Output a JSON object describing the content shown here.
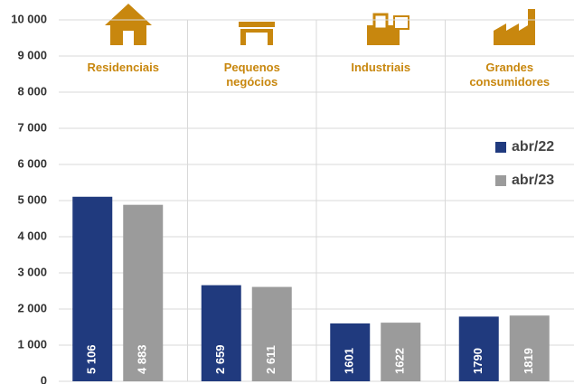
{
  "chart_data": {
    "type": "bar",
    "categories": [
      "Residenciais",
      "Pequenos\nnegócios",
      "Industriais",
      "Grandes\nconsumidores"
    ],
    "series": [
      {
        "name": "abr/22",
        "color": "#203a7e",
        "values": [
          5106,
          2659,
          1601,
          1790
        ],
        "value_labels": [
          "5 106",
          "2 659",
          "1601",
          "1790"
        ]
      },
      {
        "name": "abr/23",
        "color": "#9b9b9b",
        "values": [
          4883,
          2611,
          1622,
          1819
        ],
        "value_labels": [
          "4 883",
          "2 611",
          "1622",
          "1819"
        ]
      }
    ],
    "ylim": [
      0,
      10000
    ],
    "yticks": [
      0,
      {
        "value": 1000,
        "label": "1 000"
      },
      {
        "value": 2000,
        "label": "2 000"
      },
      {
        "value": 3000,
        "label": "3 000"
      },
      {
        "value": 4000,
        "label": "4 000"
      },
      {
        "value": 5000,
        "label": "5 000"
      },
      {
        "value": 6000,
        "label": "6 000"
      },
      {
        "value": 7000,
        "label": "7 000"
      },
      {
        "value": 8000,
        "label": "8 000"
      },
      {
        "value": 9000,
        "label": "9 000"
      },
      {
        "value": 10000,
        "label": "10 000"
      }
    ],
    "grid": true,
    "legend": "right"
  }
}
